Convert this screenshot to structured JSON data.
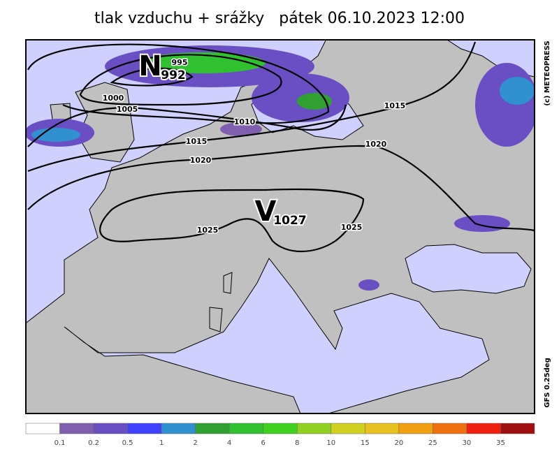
{
  "title": "tlak vzduchu + srážky   pátek 06.10.2023 12:00",
  "pressure_centers": [
    {
      "letter": "N",
      "value": 992
    },
    {
      "letter": "V",
      "value": 1027
    }
  ],
  "isobar_labels": [
    995,
    1000,
    1005,
    1010,
    1015,
    1015,
    1020,
    1020,
    1025,
    1025
  ],
  "credits": [
    "(c) METEOPRESS",
    "GFS 0.25deg"
  ],
  "legend": {
    "labels": [
      0.1,
      0.2,
      0.5,
      1,
      2,
      4,
      6,
      8,
      10,
      15,
      20,
      25,
      30,
      35
    ],
    "colors": [
      "#ffffff",
      "#7f5fae",
      "#6a4fc4",
      "#4040ff",
      "#3090d0",
      "#30a030",
      "#30c030",
      "#40d020",
      "#90d020",
      "#d0d020",
      "#e8c020",
      "#f0a010",
      "#f07010",
      "#f02010",
      "#a01010"
    ]
  }
}
